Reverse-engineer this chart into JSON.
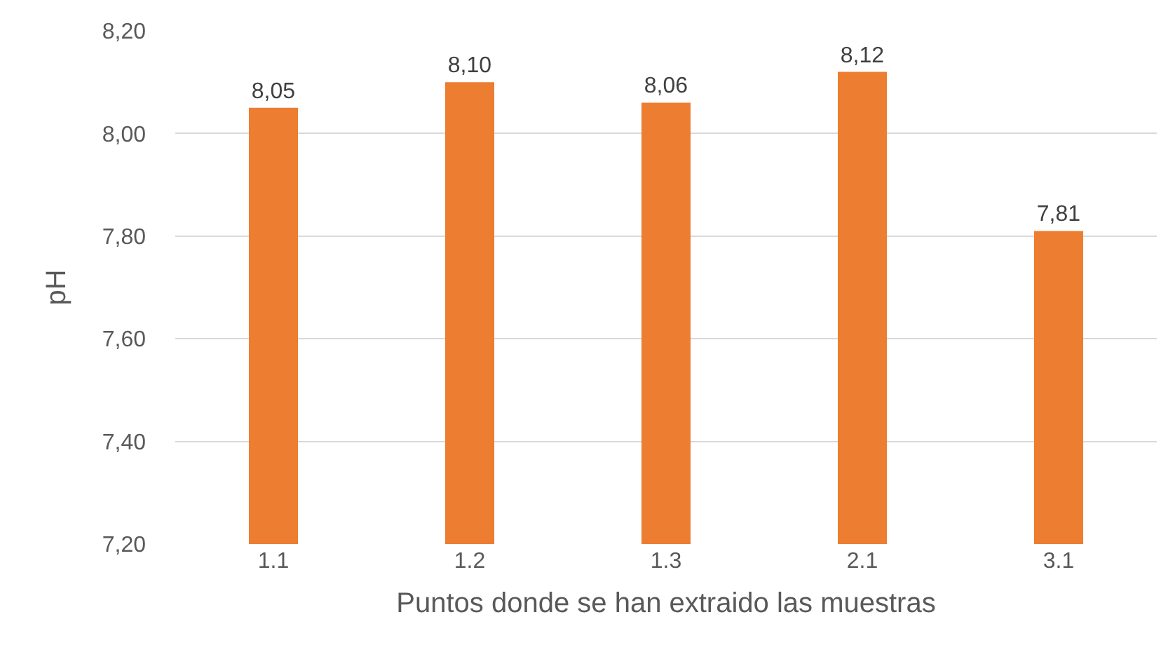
{
  "chart_data": {
    "type": "bar",
    "xlabel": "Puntos donde se han extraido las muestras",
    "ylabel": "pH",
    "categories": [
      "1.1",
      "1.2",
      "1.3",
      "2.1",
      "3.1"
    ],
    "values": [
      8.05,
      8.1,
      8.06,
      8.12,
      7.81
    ],
    "value_labels": [
      "8,05",
      "8,10",
      "8,06",
      "8,12",
      "7,81"
    ],
    "color": "#ed7d31",
    "ylim": [
      7.2,
      8.2
    ],
    "yticks": [
      {
        "value": 7.2,
        "label": "7,20"
      },
      {
        "value": 7.4,
        "label": "7,40"
      },
      {
        "value": 7.6,
        "label": "7,60"
      },
      {
        "value": 7.8,
        "label": "7,80"
      },
      {
        "value": 8.0,
        "label": "8,00"
      },
      {
        "value": 8.2,
        "label": "8,20"
      }
    ],
    "grid": "y"
  }
}
